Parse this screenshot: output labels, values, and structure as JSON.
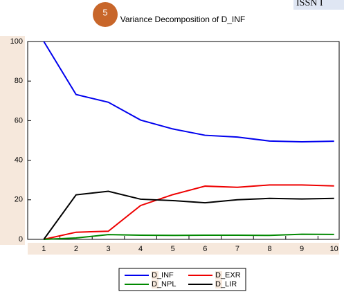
{
  "header": {
    "issn": "ISSN I",
    "badge": "5"
  },
  "chart_data": {
    "type": "line",
    "title": "Variance Decomposition of D_INF",
    "categories": [
      "1",
      "2",
      "3",
      "4",
      "5",
      "6",
      "7",
      "8",
      "9",
      "10"
    ],
    "series": [
      {
        "name": "D_INF",
        "color": "#0000ee",
        "values": [
          100,
          73.2,
          69.3,
          60.3,
          55.8,
          52.6,
          51.7,
          49.7,
          49.3,
          49.6
        ]
      },
      {
        "name": "D_EXR",
        "color": "#ee0000",
        "values": [
          0,
          3.6,
          4.1,
          17.1,
          22.6,
          26.9,
          26.3,
          27.5,
          27.5,
          27.0
        ]
      },
      {
        "name": "D_NPL",
        "color": "#008800",
        "values": [
          0,
          0.7,
          2.4,
          2.1,
          2.0,
          2.1,
          2.1,
          2.0,
          2.6,
          2.5
        ]
      },
      {
        "name": "D_LIR",
        "color": "#000000",
        "values": [
          0,
          22.5,
          24.3,
          20.3,
          19.6,
          18.5,
          20.0,
          20.7,
          20.4,
          20.7
        ]
      }
    ],
    "ylim": [
      0,
      100
    ],
    "yticks": [
      0,
      20,
      40,
      60,
      80,
      100
    ]
  }
}
